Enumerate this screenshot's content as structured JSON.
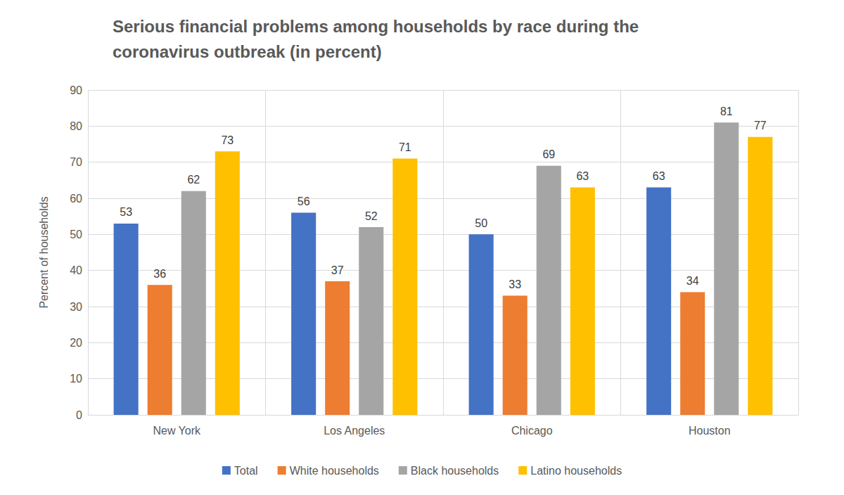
{
  "chart_data": {
    "type": "bar",
    "title": "Serious financial problems among households by race during the coronavirus outbreak (in percent)",
    "y_label": "Percent of households",
    "categories": [
      "New York",
      "Los Angeles",
      "Chicago",
      "Houston"
    ],
    "series": [
      {
        "name": "Total",
        "color": "#4472c4",
        "values": [
          53,
          56,
          50,
          63
        ]
      },
      {
        "name": "White households",
        "color": "#ed7d31",
        "values": [
          36,
          37,
          33,
          34
        ]
      },
      {
        "name": "Black households",
        "color": "#a5a5a5",
        "values": [
          62,
          52,
          69,
          81
        ]
      },
      {
        "name": "Latino households",
        "color": "#ffc000",
        "values": [
          73,
          71,
          63,
          77
        ]
      }
    ],
    "ylim": [
      0,
      90
    ],
    "yticks": [
      0,
      10,
      20,
      30,
      40,
      50,
      60,
      70,
      80,
      90
    ],
    "grid": true,
    "legend": "bottom",
    "data_labels": true
  }
}
